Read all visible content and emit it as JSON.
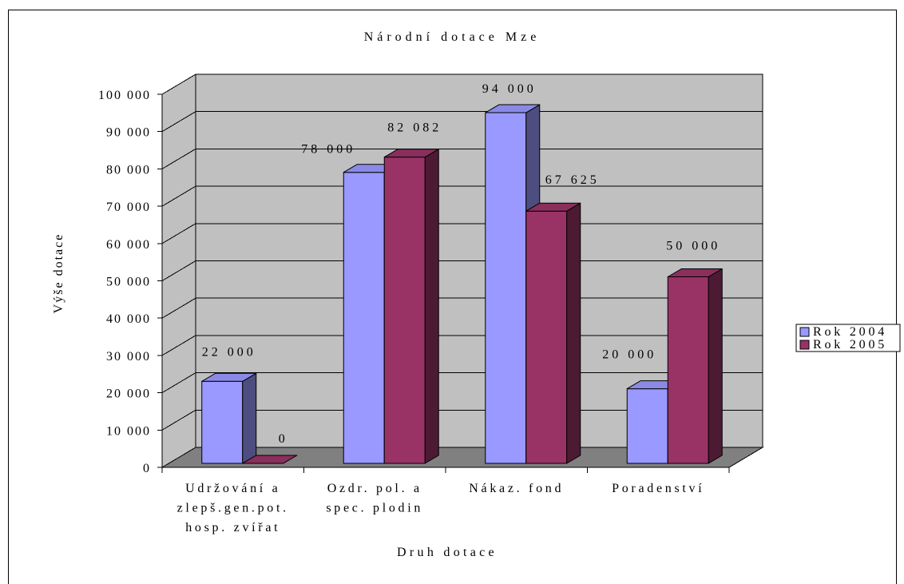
{
  "chart_data": {
    "type": "bar",
    "3d": true,
    "title": "Národní dotace Mze",
    "xlabel": "Druh dotace",
    "ylabel": "Výše dotace",
    "categories": [
      "Udržování a\nzlepš.gen.pot.\nhosp. zvířat",
      "Ozdr. pol. a\nspec. plodin",
      "Nákaz. fond",
      "Poradenství"
    ],
    "series": [
      {
        "name": "Rok 2004",
        "color": "#9999FF",
        "values": [
          22000,
          78000,
          94000,
          20000
        ]
      },
      {
        "name": "Rok 2005",
        "color": "#993366",
        "values": [
          0,
          82082,
          67625,
          50000
        ]
      }
    ],
    "ylim": [
      0,
      100000
    ],
    "yticks": [
      0,
      10000,
      20000,
      30000,
      40000,
      50000,
      60000,
      70000,
      80000,
      90000,
      100000
    ],
    "ytick_labels": [
      "0",
      "10 000",
      "20 000",
      "30 000",
      "40 000",
      "50 000",
      "60 000",
      "70 000",
      "80 000",
      "90 000",
      "100 000"
    ],
    "data_labels": true,
    "grid": true,
    "legend": "right",
    "colors": {
      "walls": "#C0C0C0",
      "floor": "#808080"
    }
  }
}
